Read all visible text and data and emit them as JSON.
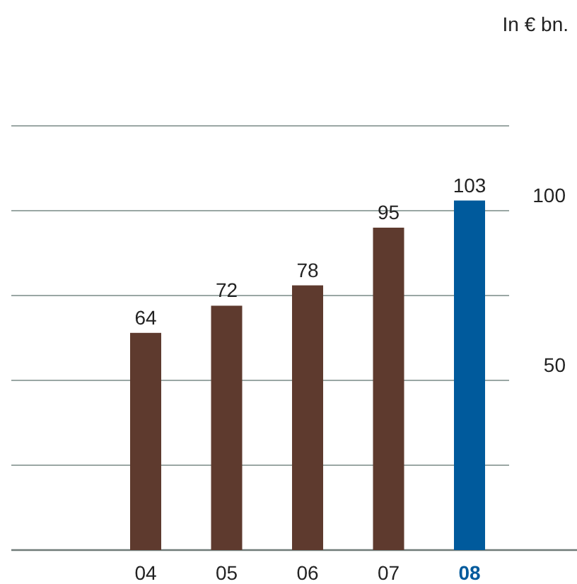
{
  "chart_data": {
    "type": "bar",
    "title": "In € bn.",
    "categories": [
      "04",
      "05",
      "06",
      "07",
      "08"
    ],
    "values": [
      64,
      72,
      78,
      95,
      103
    ],
    "colors": [
      "#5e3a2e",
      "#5e3a2e",
      "#5e3a2e",
      "#5e3a2e",
      "#005a9c"
    ],
    "ylim": [
      0,
      125
    ],
    "yticks": [
      {
        "value": 0,
        "label": null
      },
      {
        "value": 25,
        "label": null
      },
      50,
      {
        "value": 75,
        "label": null
      },
      100,
      {
        "value": 125,
        "label": null
      }
    ],
    "grid": "y",
    "data_labels": true
  }
}
